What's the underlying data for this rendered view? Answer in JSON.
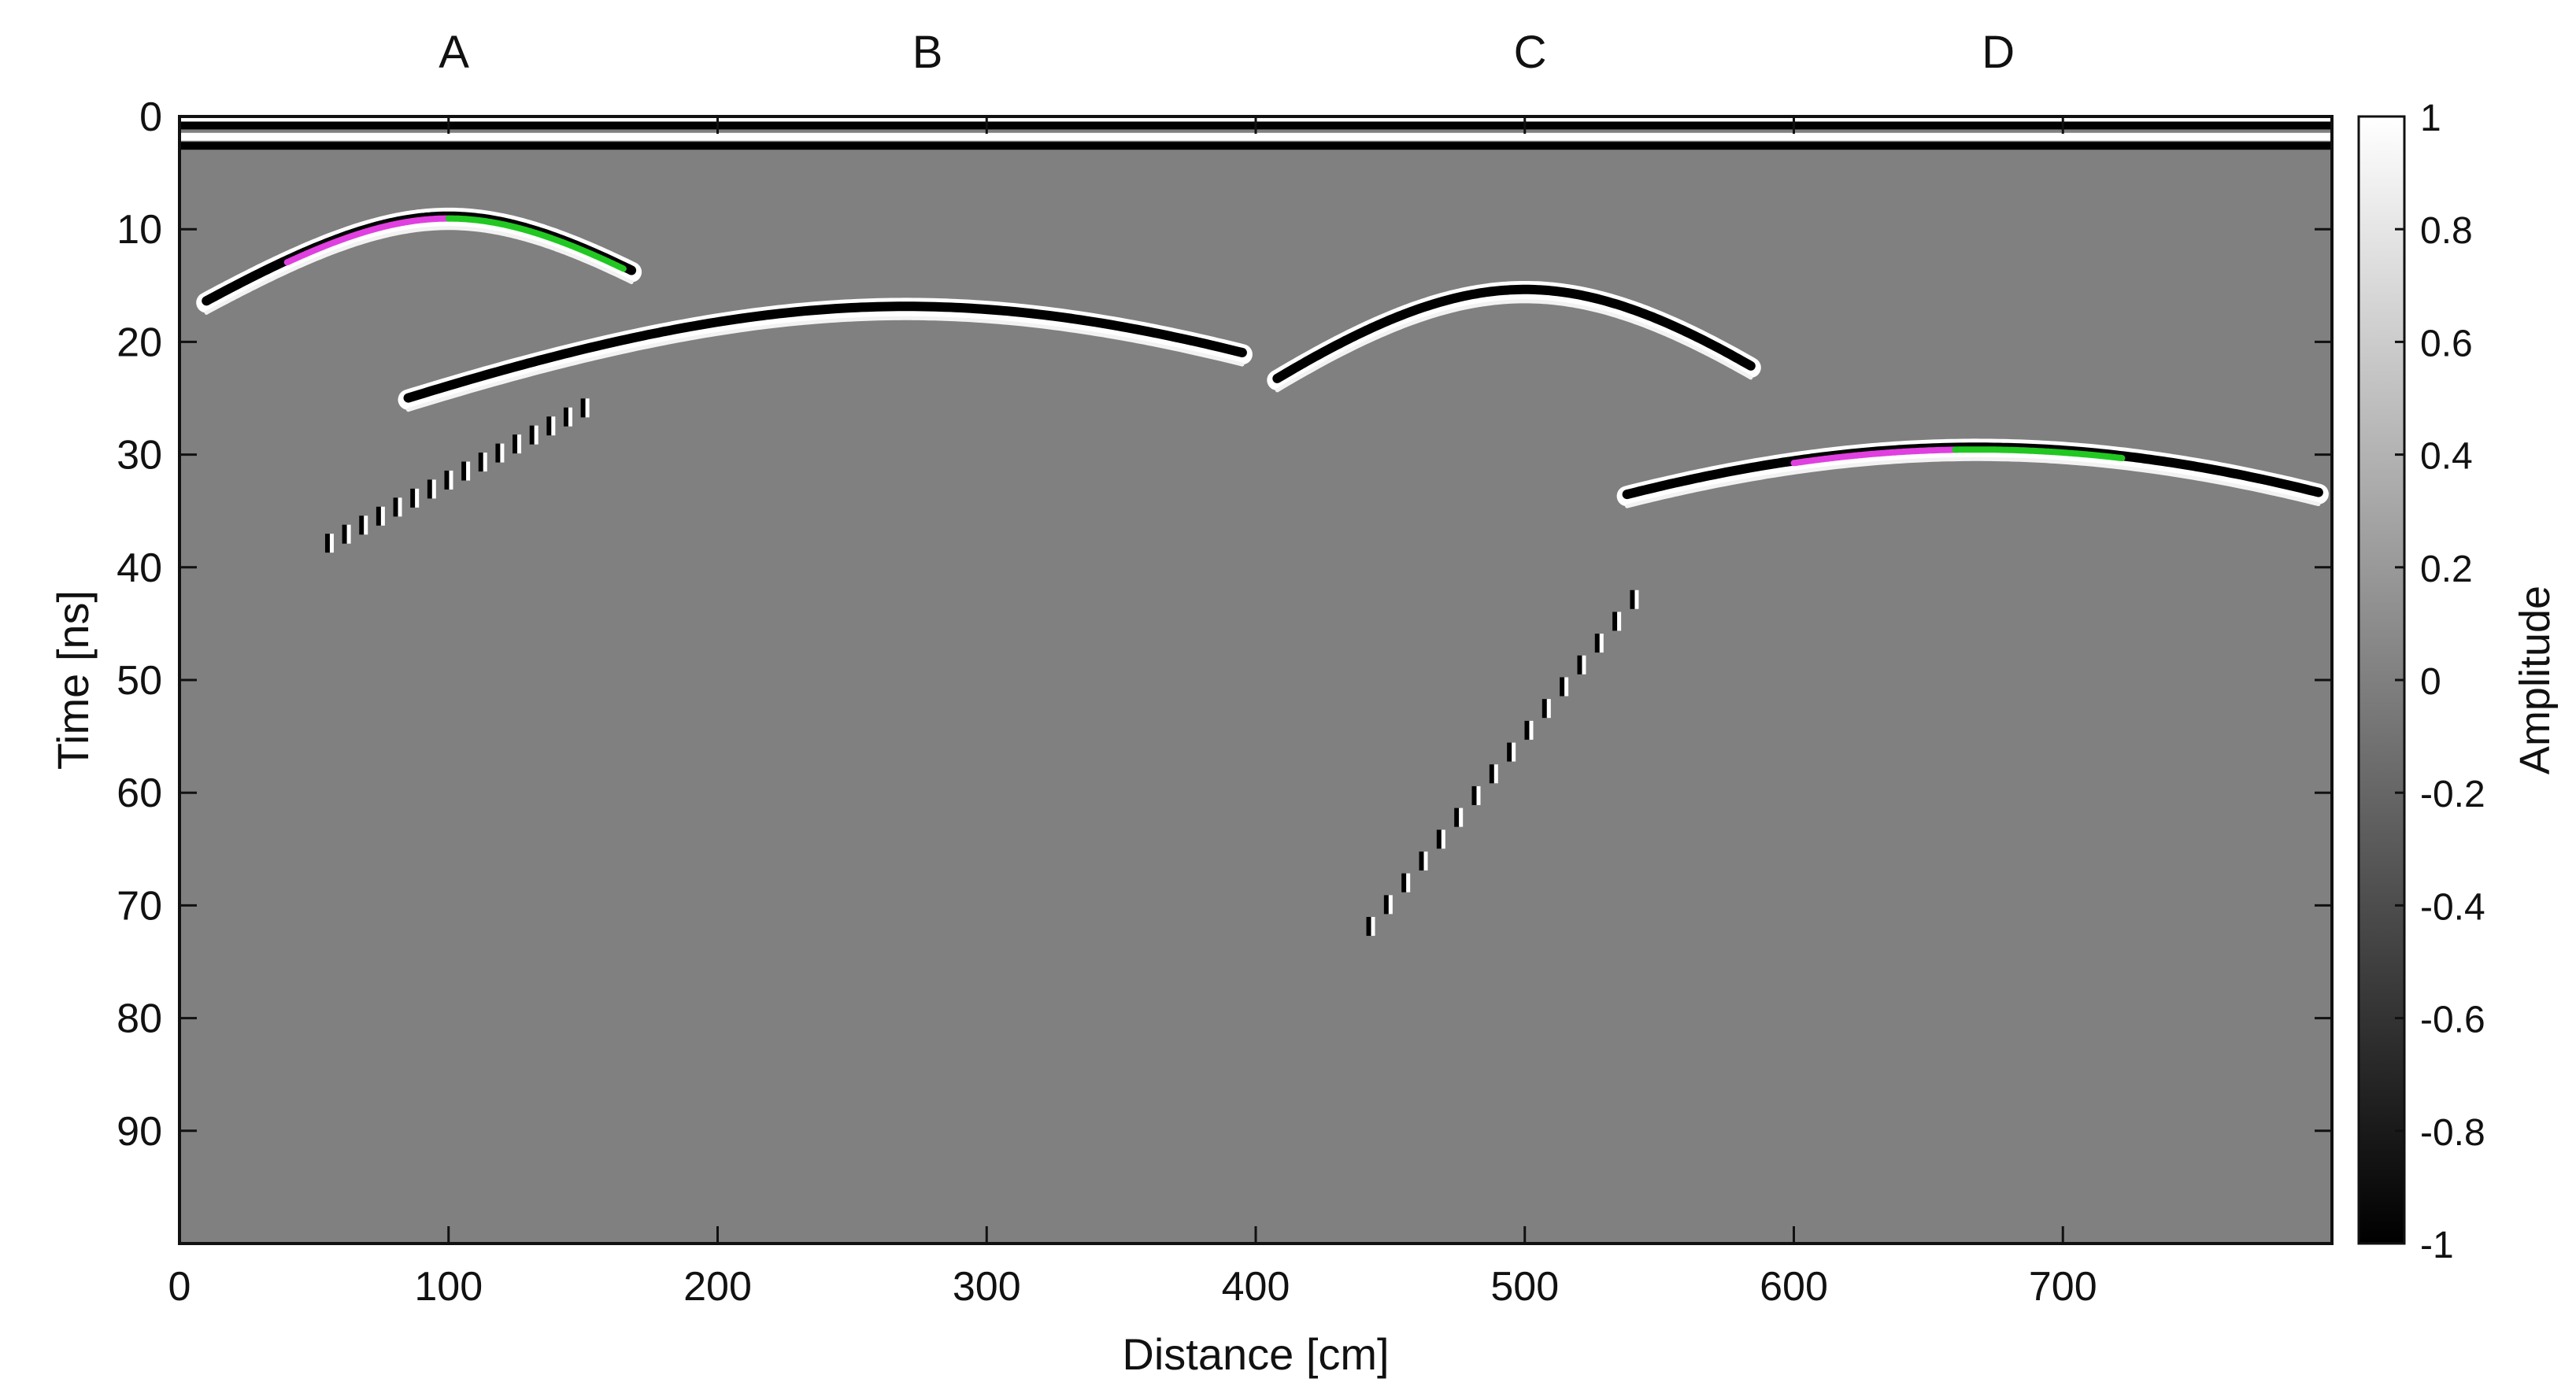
{
  "chart_data": {
    "type": "heatmap",
    "description_kind": "GPR radargram (B-scan) with hyperbolic reflections",
    "xlabel": "Distance [cm]",
    "ylabel": "Time [ns]",
    "xlim": [
      0,
      800
    ],
    "ylim": [
      0,
      100
    ],
    "y_reversed": true,
    "xticks": [
      0,
      100,
      200,
      300,
      400,
      500,
      600,
      700
    ],
    "yticks": [
      0,
      10,
      20,
      30,
      40,
      50,
      60,
      70,
      80,
      90
    ],
    "colorbar": {
      "label": "Amplitude",
      "range": [
        -1,
        1
      ],
      "ticks": [
        "1",
        "0.8",
        "0.6",
        "0.4",
        "0.2",
        "0",
        "-0.2",
        "-0.4",
        "-0.6",
        "-0.8",
        "-1"
      ],
      "colormap": "gray"
    },
    "segment_labels": [
      {
        "label": "A",
        "x": 102
      },
      {
        "label": "B",
        "x": 278
      },
      {
        "label": "C",
        "x": 502
      },
      {
        "label": "D",
        "x": 676
      }
    ],
    "direct_wave_bands_ns": [
      0.8,
      1.8,
      2.6
    ],
    "hyperbolas": [
      {
        "name": "A",
        "x0": 100,
        "t0": 9.0,
        "v_cm_per_ns": 13.0,
        "x_range": [
          10,
          168
        ]
      },
      {
        "name": "B",
        "x0": 270,
        "t0": 17.0,
        "v_cm_per_ns": 20.0,
        "x_range": [
          85,
          395
        ]
      },
      {
        "name": "C",
        "x0": 500,
        "t0": 15.5,
        "v_cm_per_ns": 10.5,
        "x_range": [
          408,
          584
        ]
      },
      {
        "name": "D",
        "x0": 668,
        "t0": 29.5,
        "v_cm_per_ns": 16.0,
        "x_range": [
          538,
          795
        ]
      }
    ],
    "sparse_tails": [
      {
        "name": "B-tail",
        "x_range": [
          55,
          150
        ],
        "t_range": [
          38,
          26
        ]
      },
      {
        "name": "D-tail",
        "x_range": [
          442,
          540
        ],
        "t_range": [
          72,
          43
        ]
      }
    ],
    "fitted_curves": [
      {
        "segment": "A",
        "side": "left",
        "color": "#e040e0",
        "x_range": [
          40,
          100
        ]
      },
      {
        "segment": "A",
        "side": "right",
        "color": "#22c722",
        "x_range": [
          100,
          165
        ]
      },
      {
        "segment": "D",
        "side": "left",
        "color": "#e040e0",
        "x_range": [
          600,
          660
        ]
      },
      {
        "segment": "D",
        "side": "right",
        "color": "#22c722",
        "x_range": [
          660,
          722
        ]
      }
    ],
    "background_amplitude": 0
  }
}
